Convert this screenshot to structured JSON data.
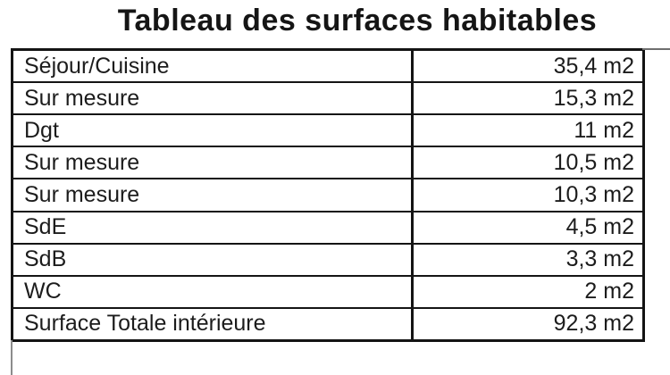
{
  "title": "Tableau des surfaces habitables",
  "table": {
    "rows": [
      {
        "label": "Séjour/Cuisine",
        "value": "35,4 m2"
      },
      {
        "label": "Sur mesure",
        "value": "15,3 m2"
      },
      {
        "label": "Dgt",
        "value": "11 m2"
      },
      {
        "label": "Sur mesure",
        "value": "10,5 m2"
      },
      {
        "label": "Sur mesure",
        "value": "10,3 m2"
      },
      {
        "label": "SdE",
        "value": "4,5 m2"
      },
      {
        "label": "SdB",
        "value": "3,3 m2"
      },
      {
        "label": "WC",
        "value": "2 m2"
      },
      {
        "label": "Surface Totale intérieure",
        "value": "92,3 m2"
      }
    ]
  },
  "colors": {
    "background": "#ffffff",
    "text": "#1c1c1c",
    "border": "#141414",
    "scan_artifact_gray": "#7a7a7a"
  }
}
